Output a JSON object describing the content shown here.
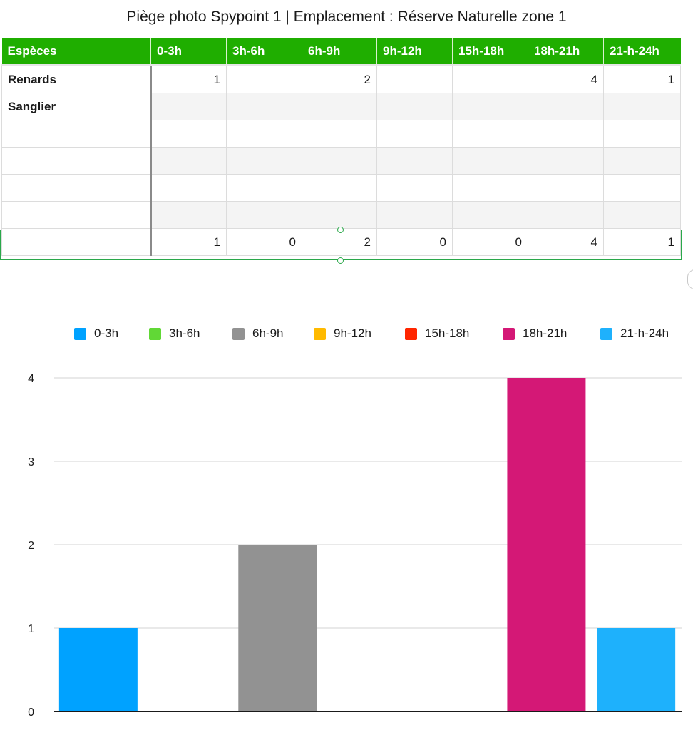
{
  "title": "Piège photo Spypoint 1 | Emplacement : Réserve Naturelle zone 1",
  "table": {
    "headers": [
      "Espèces",
      "0-3h",
      "3h-6h",
      "6h-9h",
      "9h-12h",
      "15h-18h",
      "18h-21h",
      "21-h-24h"
    ],
    "rows": [
      [
        "Renards",
        "1",
        "",
        "2",
        "",
        "",
        "4",
        "1"
      ],
      [
        "Sanglier",
        "",
        "",
        "",
        "",
        "",
        "",
        ""
      ],
      [
        "",
        "",
        "",
        "",
        "",
        "",
        "",
        ""
      ],
      [
        "",
        "",
        "",
        "",
        "",
        "",
        "",
        ""
      ],
      [
        "",
        "",
        "",
        "",
        "",
        "",
        "",
        ""
      ],
      [
        "",
        "",
        "",
        "",
        "",
        "",
        "",
        ""
      ]
    ],
    "footer": [
      "",
      "1",
      "0",
      "2",
      "0",
      "0",
      "4",
      "1"
    ]
  },
  "chart_data": {
    "type": "bar",
    "title": "",
    "xlabel": "",
    "ylabel": "",
    "categories": [
      "0-3h",
      "3h-6h",
      "6h-9h",
      "9h-12h",
      "15h-18h",
      "18h-21h",
      "21-h-24h"
    ],
    "values": [
      1,
      0,
      2,
      0,
      0,
      4,
      1
    ],
    "colors": [
      "#00a2ff",
      "#61d836",
      "#929292",
      "#ffba00",
      "#ff2600",
      "#d41876",
      "#1eb1fc"
    ],
    "ylim": [
      0,
      4
    ],
    "yticks": [
      "0",
      "1",
      "2",
      "3",
      "4"
    ],
    "grid": true,
    "legend_position": "top"
  }
}
